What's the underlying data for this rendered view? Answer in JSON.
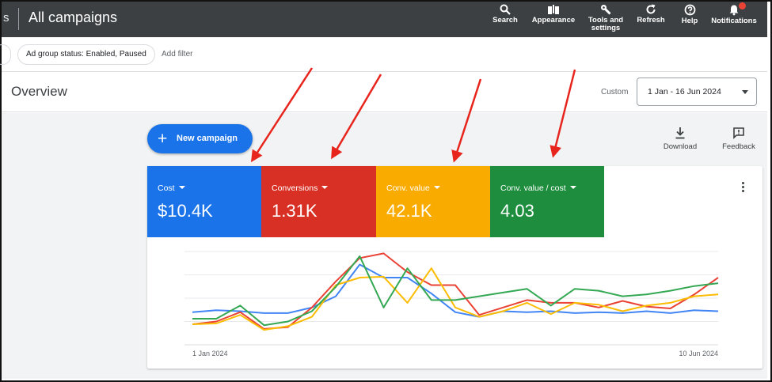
{
  "header": {
    "edge_glyph": "s",
    "title": "All campaigns",
    "tools": [
      {
        "id": "search",
        "label": "Search",
        "icon": "search-icon"
      },
      {
        "id": "appearance",
        "label": "Appearance",
        "icon": "appearance-icon"
      },
      {
        "id": "tools",
        "label": "Tools and settings",
        "icon": "wrench-icon"
      },
      {
        "id": "refresh",
        "label": "Refresh",
        "icon": "refresh-icon"
      },
      {
        "id": "help",
        "label": "Help",
        "icon": "help-icon"
      },
      {
        "id": "notifications",
        "label": "Notifications",
        "icon": "bell-icon"
      }
    ]
  },
  "filters": {
    "chip": "Ad group status: Enabled, Paused",
    "add_filter": "Add filter"
  },
  "overview": {
    "title": "Overview",
    "range_label": "Custom",
    "date_range": "1 Jan - 16 Jun 2024"
  },
  "actions": {
    "new_campaign": "New campaign",
    "download": "Download",
    "feedback": "Feedback"
  },
  "metrics": [
    {
      "label": "Cost",
      "value": "$10.4K",
      "color": "#1a73e8"
    },
    {
      "label": "Conversions",
      "value": "1.31K",
      "color": "#d93025"
    },
    {
      "label": "Conv. value",
      "value": "42.1K",
      "color": "#f9ab00"
    },
    {
      "label": "Conv. value / cost",
      "value": "4.03",
      "color": "#1e8e3e"
    }
  ],
  "chart_data": {
    "type": "line",
    "x_start_label": "1 Jan 2024",
    "x_end_label": "10 Jun 2024",
    "ylim": [
      0,
      100
    ],
    "grid": true,
    "series": [
      {
        "color": "#4285f4",
        "values": [
          35,
          37,
          36,
          34,
          34,
          40,
          52,
          86,
          72,
          72,
          55,
          35,
          30,
          36,
          35,
          36,
          34,
          35,
          34,
          36,
          34,
          37,
          36
        ]
      },
      {
        "color": "#ea4335",
        "values": [
          22,
          25,
          35,
          17,
          19,
          40,
          68,
          93,
          98,
          78,
          64,
          64,
          32,
          40,
          48,
          45,
          45,
          40,
          47,
          41,
          39,
          54,
          72
        ]
      },
      {
        "color": "#fbbc04",
        "values": [
          22,
          23,
          32,
          16,
          20,
          30,
          64,
          72,
          73,
          45,
          82,
          40,
          30,
          36,
          45,
          33,
          45,
          43,
          36,
          42,
          45,
          52,
          54
        ]
      },
      {
        "color": "#34a853",
        "values": [
          28,
          28,
          42,
          21,
          25,
          36,
          62,
          95,
          40,
          82,
          48,
          48,
          52,
          56,
          60,
          42,
          60,
          58,
          52,
          54,
          58,
          63,
          66
        ]
      }
    ]
  }
}
